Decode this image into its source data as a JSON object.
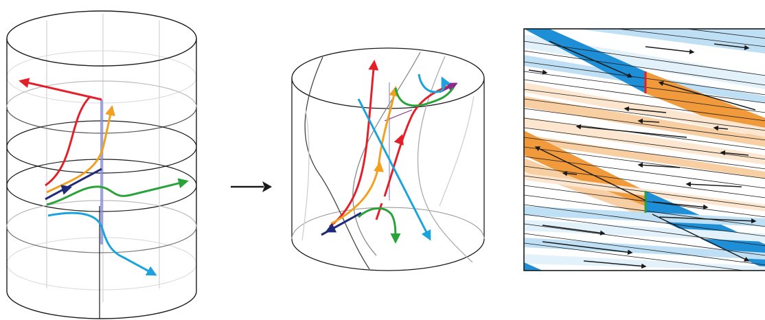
{
  "figure": {
    "panels": [
      {
        "id": "stacked-cylinder",
        "description_free": true
      },
      {
        "id": "twisted-cylinder",
        "description_free": true
      },
      {
        "id": "flattened-square",
        "description_free": true
      }
    ],
    "colors": {
      "red": "#e3202a",
      "orange": "#f2a01e",
      "navy": "#1e2a78",
      "green": "#2aa23a",
      "cyan": "#1aa3dc",
      "purple": "#8a2a8c",
      "lavender": "#8a8fd6",
      "outline": "#1a1a1a",
      "light_outline": "#9a9a9a",
      "blue_band": "#1e8fd6",
      "blue_light": "#bfe0f4",
      "blue_pale": "#e2f1fa",
      "orange_band": "#f09a3c",
      "orange_light": "#f8cfa2",
      "orange_pale": "#fce6cf"
    },
    "icons": {
      "transition_arrow": "long-right-arrow-icon"
    }
  }
}
